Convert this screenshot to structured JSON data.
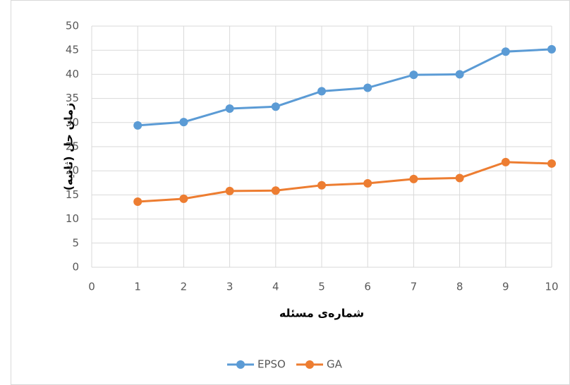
{
  "chart_data": {
    "type": "line",
    "x_label": "شماره‌ی مسئله",
    "y_label": "زمان حل (ثانیه)",
    "x": [
      1,
      2,
      3,
      4,
      5,
      6,
      7,
      8,
      9,
      10
    ],
    "series": [
      {
        "name": "EPSO",
        "color": "#5b9bd5",
        "values": [
          29.4,
          30.1,
          32.9,
          33.3,
          36.5,
          37.2,
          39.9,
          40.0,
          44.7,
          45.2
        ]
      },
      {
        "name": "GA",
        "color": "#ed7d31",
        "values": [
          13.6,
          14.2,
          15.8,
          15.9,
          17.0,
          17.4,
          18.3,
          18.5,
          21.8,
          21.5
        ]
      }
    ],
    "xlim": [
      0,
      10
    ],
    "xticks": [
      0,
      1,
      2,
      3,
      4,
      5,
      6,
      7,
      8,
      9,
      10
    ],
    "ylim": [
      0,
      50
    ],
    "yticks": [
      0,
      5,
      10,
      15,
      20,
      25,
      30,
      35,
      40,
      45,
      50
    ],
    "grid": true,
    "legend": "bottom"
  }
}
